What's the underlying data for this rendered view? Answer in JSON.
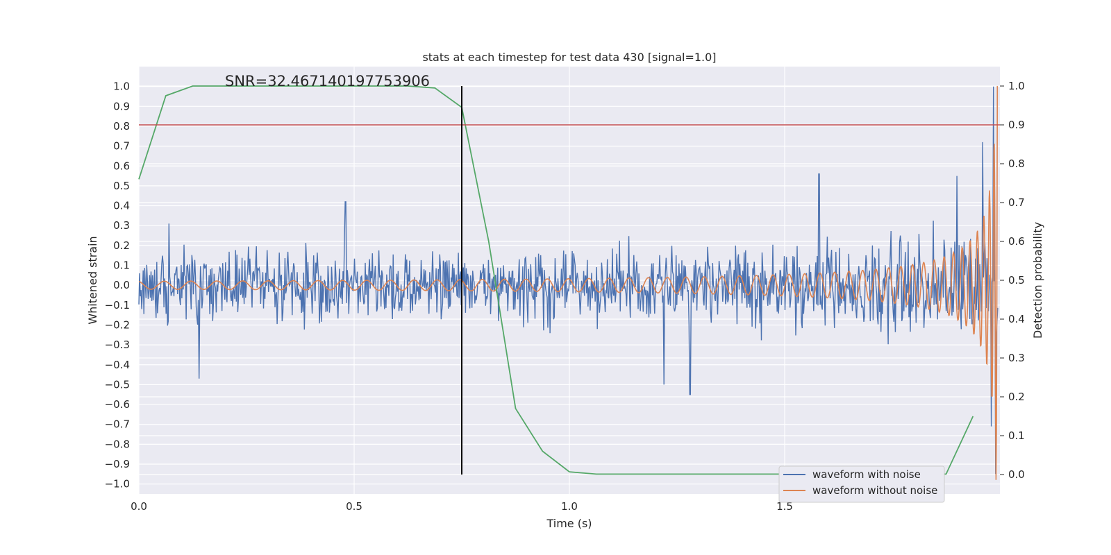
{
  "chart_data": {
    "type": "line",
    "title": "stats at each timestep for test data 430 [signal=1.0]",
    "annotation": "SNR=32.467140197753906",
    "xlabel": "Time (s)",
    "ylabel_left": "Whitened strain",
    "ylabel_right": "Detection probability",
    "xlim": [
      0.0,
      2.0
    ],
    "ylim_left": [
      -1.05,
      1.1
    ],
    "ylim_right": [
      -0.05,
      1.05
    ],
    "x_ticks": [
      0.0,
      0.5,
      1.0,
      1.5
    ],
    "x_tick_labels": [
      "0.0",
      "0.5",
      "1.0",
      "1.5"
    ],
    "y_left_ticks": [
      1.0,
      0.9,
      0.8,
      0.7,
      0.6,
      0.5,
      0.4,
      0.3,
      0.2,
      0.1,
      0.0,
      -0.1,
      -0.2,
      -0.3,
      -0.4,
      -0.5,
      -0.6,
      -0.7,
      -0.8,
      -0.9,
      -1.0
    ],
    "y_left_tick_labels": [
      "1.0",
      "0.9",
      "0.8",
      "0.7",
      "0.6",
      "0.5",
      "0.4",
      "0.3",
      "0.2",
      "0.1",
      "0.0",
      "−0.1",
      "−0.2",
      "−0.3",
      "−0.4",
      "−0.5",
      "−0.6",
      "−0.7",
      "−0.8",
      "−0.9",
      "−1.0"
    ],
    "y_right_ticks": [
      1.0,
      0.9,
      0.8,
      0.7,
      0.6,
      0.5,
      0.4,
      0.3,
      0.2,
      0.1,
      0.0
    ],
    "y_right_tick_labels": [
      "1.0",
      "0.9",
      "0.8",
      "0.7",
      "0.6",
      "0.5",
      "0.4",
      "0.3",
      "0.2",
      "0.1",
      "0.0"
    ],
    "grid": true,
    "legend_position": "lower-right",
    "series": [
      {
        "name": "waveform with noise",
        "axis": "left",
        "color": "#4c72b0",
        "description_points": "dense noisy whitened strain, amplitude ~0.15-0.3 rising to spikes near 1.0 at the merger close to t=1.99s",
        "x_start": 0.0,
        "x_end": 1.995,
        "n_points": 1200,
        "base_amplitude": 0.12,
        "peak_values": [
          {
            "x": 0.48,
            "y": 0.42
          },
          {
            "x": 0.07,
            "y": 0.31
          },
          {
            "x": 0.14,
            "y": -0.47
          },
          {
            "x": 1.28,
            "y": -0.55
          },
          {
            "x": 1.22,
            "y": -0.5
          },
          {
            "x": 1.58,
            "y": 0.56
          },
          {
            "x": 1.9,
            "y": 0.55
          },
          {
            "x": 1.96,
            "y": 0.72
          },
          {
            "x": 1.985,
            "y": 1.0
          },
          {
            "x": 1.98,
            "y": -0.71
          },
          {
            "x": 1.99,
            "y": -0.95
          }
        ]
      },
      {
        "name": "waveform without noise",
        "axis": "left",
        "color": "#dd8452",
        "description_points": "chirp signal; amplitude grows from ~0.02 at t=0 to ~1.0 at t=1.995",
        "x_start": 0.0,
        "x_end": 1.995,
        "amplitude_start": 0.02,
        "amplitude_end": 1.0,
        "t_coalescence": 2.0
      },
      {
        "name": "",
        "axis": "right",
        "color": "#55a868",
        "x": [
          0.0,
          0.0625,
          0.125,
          0.1875,
          0.25,
          0.3125,
          0.375,
          0.4375,
          0.5,
          0.5625,
          0.625,
          0.6875,
          0.75,
          0.8125,
          0.875,
          0.9375,
          1.0,
          1.0625,
          1.125,
          1.1875,
          1.25,
          1.3125,
          1.375,
          1.4375,
          1.5,
          1.5625,
          1.625,
          1.6875,
          1.75,
          1.8125,
          1.875,
          1.9375
        ],
        "y": [
          0.76,
          0.975,
          1.0,
          1.0,
          1.0,
          1.0,
          1.0,
          1.0,
          1.0,
          1.0,
          1.0,
          0.995,
          0.945,
          0.6,
          0.17,
          0.06,
          0.007,
          0.001,
          0.001,
          0.001,
          0.001,
          0.001,
          0.001,
          0.001,
          0.001,
          0.001,
          0.001,
          0.001,
          0.001,
          0.001,
          0.001,
          0.15
        ]
      }
    ],
    "threshold_line": {
      "axis": "right",
      "y": 0.9,
      "color": "#c44e52"
    },
    "marker_line": {
      "x": 0.75,
      "y_right_from": 0.0,
      "y_right_to": 1.0,
      "color": "#000000"
    }
  },
  "colors": {
    "axes_background": "#eaeaf2",
    "grid": "#ffffff",
    "text": "#262626",
    "legend_face": "#eaeaf2",
    "legend_edge": "#cccccc"
  }
}
